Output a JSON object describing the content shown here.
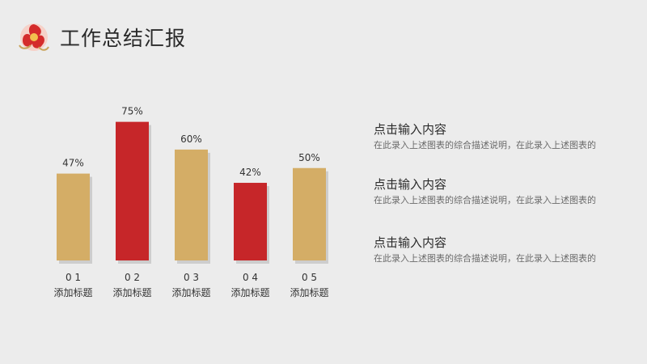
{
  "header": {
    "title": "工作总结汇报",
    "logo_icon": "red-peony-flower-icon"
  },
  "chart_data": {
    "type": "bar",
    "categories": [
      "0 1",
      "0 2",
      "0 3",
      "0 4",
      "0 5"
    ],
    "sublabels": [
      "添加标题",
      "添加标题",
      "添加标题",
      "添加标题",
      "添加标题"
    ],
    "values": [
      47,
      75,
      60,
      42,
      50
    ],
    "data_labels": [
      "47%",
      "75%",
      "60%",
      "42%",
      "50%"
    ],
    "colors": [
      "#d4ad66",
      "#c62629",
      "#d4ad66",
      "#c62629",
      "#d4ad66"
    ],
    "ylim": [
      0,
      100
    ],
    "grid": false
  },
  "descriptions": [
    {
      "title": "点击输入内容",
      "text": "在此录入上述图表的综合描述说明，在此录入上述图表的"
    },
    {
      "title": "点击输入内容",
      "text": "在此录入上述图表的综合描述说明，在此录入上述图表的"
    },
    {
      "title": "点击输入内容",
      "text": "在此录入上述图表的综合描述说明，在此录入上述图表的"
    }
  ]
}
